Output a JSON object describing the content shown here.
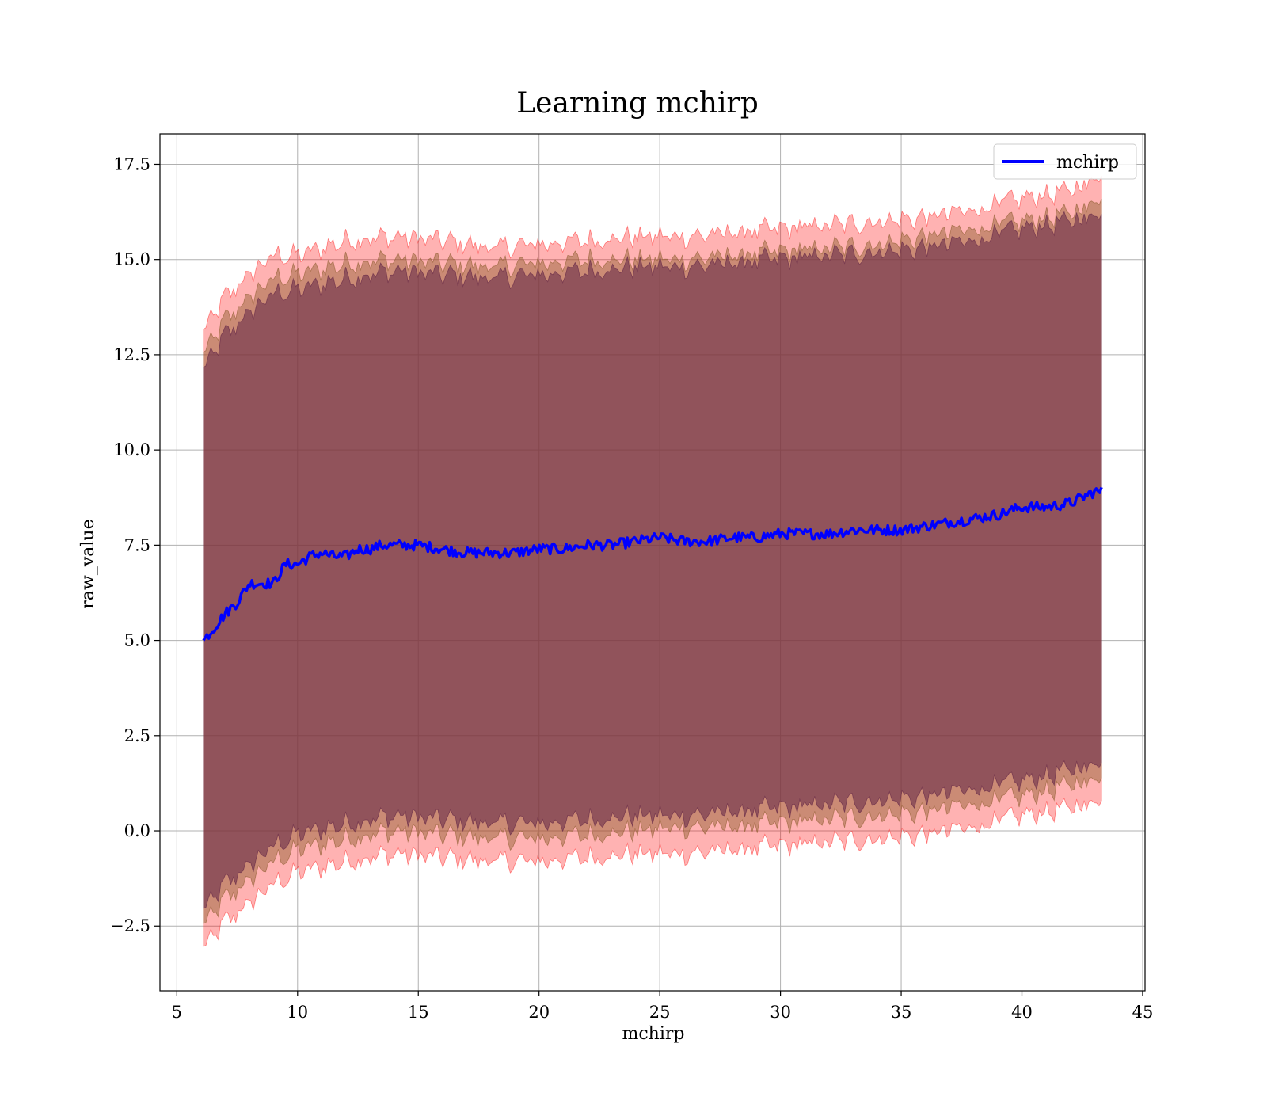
{
  "chart_data": {
    "type": "area",
    "title": "Learning mchirp",
    "xlabel": "mchirp",
    "ylabel": "raw_value",
    "xlim": [
      4.3,
      45.1
    ],
    "ylim": [
      -4.2,
      18.3
    ],
    "x_ticks": [
      5,
      10,
      15,
      20,
      25,
      30,
      35,
      40,
      45
    ],
    "y_ticks": [
      -2.5,
      0.0,
      2.5,
      5.0,
      7.5,
      10.0,
      12.5,
      15.0,
      17.5
    ],
    "x_tick_labels": [
      "5",
      "10",
      "15",
      "20",
      "25",
      "30",
      "35",
      "40",
      "45"
    ],
    "y_tick_labels": [
      "−2.5",
      "0.0",
      "2.5",
      "5.0",
      "7.5",
      "10.0",
      "12.5",
      "15.0",
      "17.5"
    ],
    "grid": true,
    "legend": {
      "position": "top-right",
      "entries": [
        {
          "label": "mchirp",
          "color": "#0000ff"
        }
      ]
    },
    "series": [
      {
        "name": "mchirp",
        "color": "#0000ff",
        "x": [
          6.1,
          6.5,
          7.0,
          7.5,
          8.0,
          8.5,
          9.0,
          9.5,
          10.0,
          10.5,
          11.0,
          11.5,
          12.0,
          12.5,
          13.0,
          13.5,
          14.0,
          15.0,
          16.0,
          17.0,
          18.0,
          19.0,
          20.0,
          21.0,
          22.0,
          23.0,
          24.0,
          25.0,
          26.0,
          27.0,
          28.0,
          29.0,
          30.0,
          31.0,
          32.0,
          33.0,
          34.0,
          35.0,
          36.0,
          37.0,
          38.0,
          39.0,
          40.0,
          41.0,
          42.0,
          43.0,
          43.3
        ],
        "y": [
          5.0,
          5.3,
          5.7,
          6.0,
          6.5,
          6.5,
          6.5,
          7.0,
          7.0,
          7.2,
          7.3,
          7.2,
          7.2,
          7.4,
          7.4,
          7.5,
          7.5,
          7.5,
          7.4,
          7.3,
          7.3,
          7.3,
          7.4,
          7.4,
          7.5,
          7.5,
          7.6,
          7.7,
          7.6,
          7.6,
          7.7,
          7.7,
          7.8,
          7.8,
          7.8,
          7.9,
          7.9,
          7.9,
          8.0,
          8.1,
          8.2,
          8.3,
          8.5,
          8.5,
          8.6,
          8.9,
          8.9
        ]
      }
    ],
    "bands": [
      {
        "color": "#ff0000",
        "opacity": 0.3,
        "x": [
          6.1,
          7.0,
          8.0,
          9.0,
          10.0,
          12.0,
          14.0,
          16.0,
          18.0,
          20.0,
          22.0,
          24.0,
          26.0,
          28.0,
          30.0,
          32.0,
          34.0,
          36.0,
          38.0,
          40.0,
          42.0,
          43.3
        ],
        "upper": [
          13.1,
          14.0,
          14.6,
          15.1,
          15.1,
          15.5,
          15.6,
          15.5,
          15.3,
          15.4,
          15.5,
          15.6,
          15.6,
          15.7,
          15.8,
          15.9,
          16.0,
          16.1,
          16.3,
          16.6,
          16.8,
          17.2
        ],
        "lower": [
          -3.1,
          -2.4,
          -1.9,
          -1.4,
          -1.1,
          -0.8,
          -0.6,
          -0.7,
          -0.8,
          -0.8,
          -0.7,
          -0.6,
          -0.6,
          -0.5,
          -0.4,
          -0.3,
          -0.2,
          -0.1,
          0.1,
          0.4,
          0.6,
          0.8
        ]
      },
      {
        "color": "#8b5a2b",
        "opacity": 0.45,
        "x": [
          6.1,
          7.0,
          8.0,
          9.0,
          10.0,
          12.0,
          14.0,
          16.0,
          18.0,
          20.0,
          22.0,
          24.0,
          26.0,
          28.0,
          30.0,
          32.0,
          34.0,
          36.0,
          38.0,
          40.0,
          42.0,
          43.3
        ],
        "upper": [
          12.5,
          13.4,
          14.0,
          14.5,
          14.6,
          14.9,
          15.0,
          14.9,
          14.8,
          14.9,
          15.0,
          15.0,
          15.0,
          15.1,
          15.2,
          15.3,
          15.4,
          15.6,
          15.8,
          16.0,
          16.2,
          16.6
        ],
        "lower": [
          -2.5,
          -1.8,
          -1.3,
          -0.8,
          -0.5,
          -0.2,
          0.0,
          -0.1,
          -0.2,
          -0.2,
          -0.1,
          0.0,
          0.1,
          0.1,
          0.2,
          0.3,
          0.4,
          0.5,
          0.7,
          0.9,
          1.2,
          1.4
        ]
      },
      {
        "color": "#6b2e4a",
        "opacity": 0.6,
        "x": [
          6.1,
          7.0,
          8.0,
          9.0,
          10.0,
          12.0,
          14.0,
          16.0,
          18.0,
          20.0,
          22.0,
          24.0,
          26.0,
          28.0,
          30.0,
          32.0,
          34.0,
          36.0,
          38.0,
          40.0,
          42.0,
          43.3
        ],
        "upper": [
          12.1,
          13.0,
          13.6,
          14.1,
          14.2,
          14.5,
          14.7,
          14.6,
          14.5,
          14.6,
          14.7,
          14.8,
          14.8,
          14.9,
          15.0,
          15.1,
          15.2,
          15.3,
          15.5,
          15.8,
          16.0,
          16.2
        ],
        "lower": [
          -2.1,
          -1.4,
          -0.9,
          -0.4,
          -0.1,
          0.2,
          0.4,
          0.3,
          0.2,
          0.2,
          0.3,
          0.4,
          0.4,
          0.5,
          0.6,
          0.7,
          0.8,
          0.9,
          1.1,
          1.3,
          1.6,
          1.8
        ]
      }
    ]
  }
}
